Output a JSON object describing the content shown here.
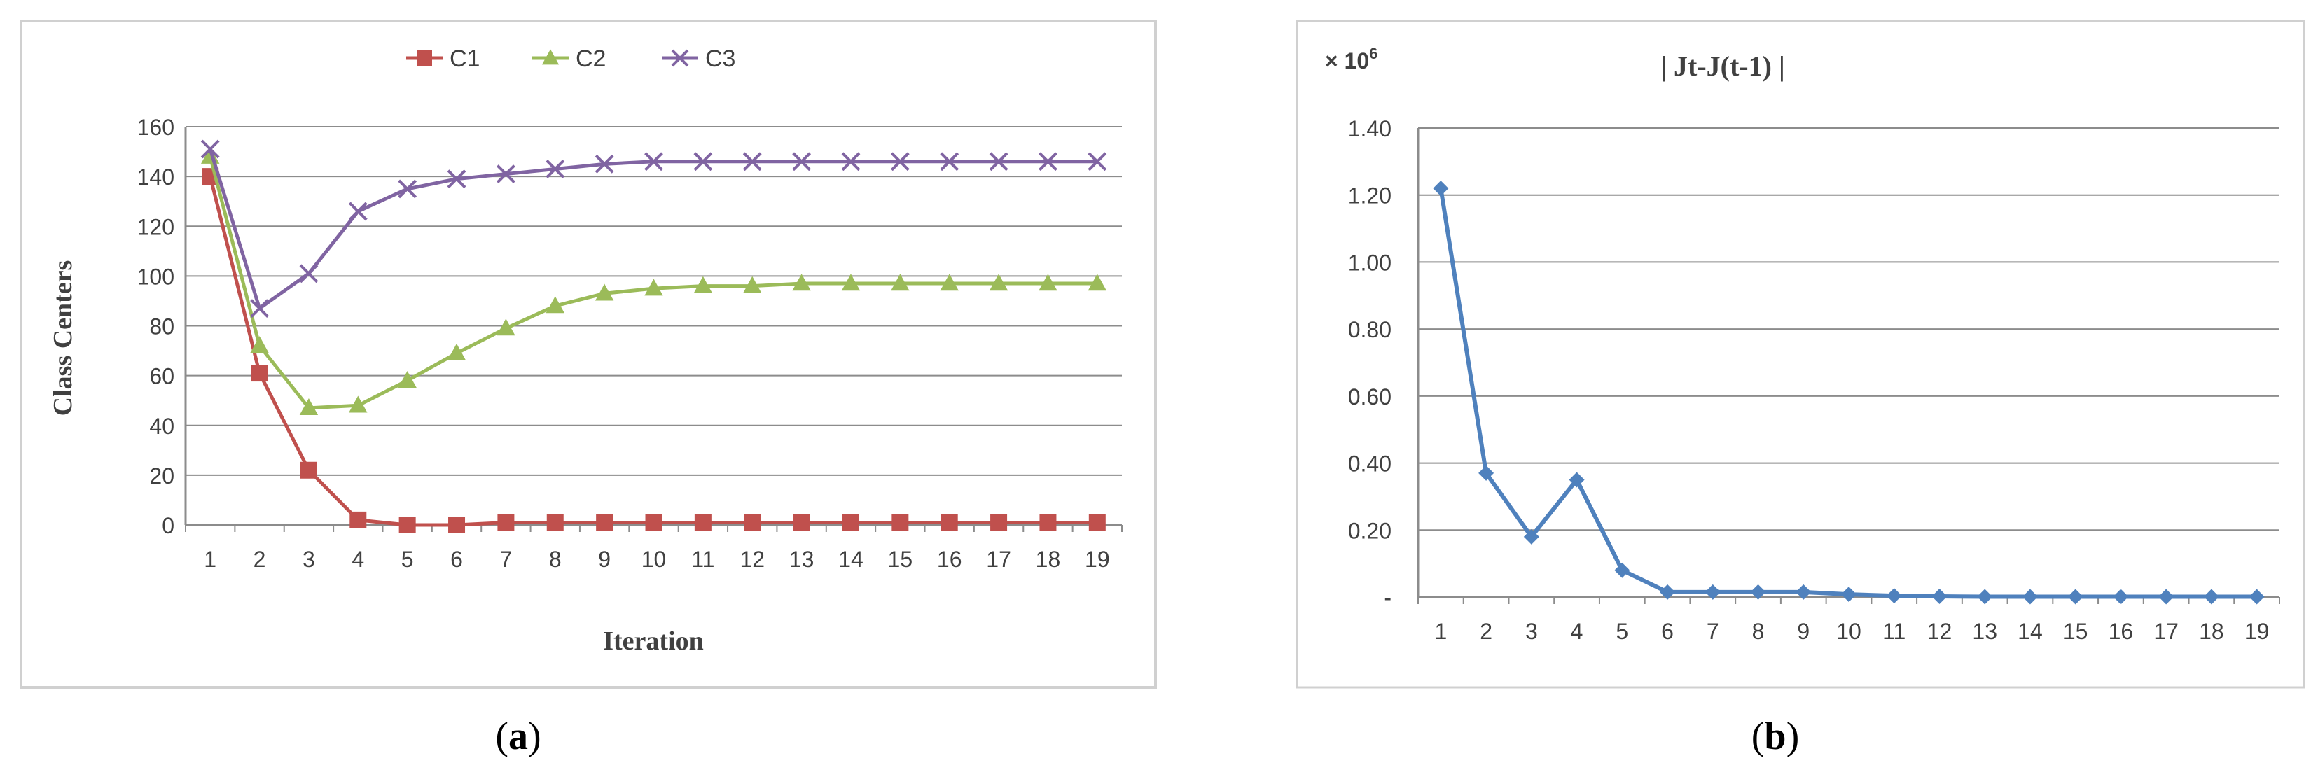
{
  "panels": [
    {
      "caption": "(",
      "caption_letter": "a",
      "caption_close": ")"
    },
    {
      "caption": "(",
      "caption_letter": "b",
      "caption_close": ")"
    }
  ],
  "chart_data": [
    {
      "type": "line",
      "x": [
        1,
        2,
        3,
        4,
        5,
        6,
        7,
        8,
        9,
        10,
        11,
        12,
        13,
        14,
        15,
        16,
        17,
        18,
        19
      ],
      "xlabel": "Iteration",
      "ylabel": "Class Centers",
      "ylim": [
        0,
        160
      ],
      "yticks": [
        "0",
        "20",
        "40",
        "60",
        "80",
        "100",
        "120",
        "140",
        "160"
      ],
      "grid": true,
      "legend": "top",
      "series": [
        {
          "name": "C1",
          "color": "#c0504d",
          "marker": "square",
          "values": [
            140,
            61,
            22,
            2,
            0,
            0,
            1,
            1,
            1,
            1,
            1,
            1,
            1,
            1,
            1,
            1,
            1,
            1,
            1
          ]
        },
        {
          "name": "C2",
          "color": "#9bbb59",
          "marker": "triangle",
          "values": [
            148,
            72,
            47,
            48,
            58,
            69,
            79,
            88,
            93,
            95,
            96,
            96,
            97,
            97,
            97,
            97,
            97,
            97,
            97
          ]
        },
        {
          "name": "C3",
          "color": "#8064a2",
          "marker": "x",
          "values": [
            151,
            87,
            101,
            126,
            135,
            139,
            141,
            143,
            145,
            146,
            146,
            146,
            146,
            146,
            146,
            146,
            146,
            146,
            146
          ]
        }
      ]
    },
    {
      "type": "line",
      "title": "| Jt-J(t-1) |",
      "multiplier_text": "× 10",
      "multiplier_exp": "6",
      "x": [
        1,
        2,
        3,
        4,
        5,
        6,
        7,
        8,
        9,
        10,
        11,
        12,
        13,
        14,
        15,
        16,
        17,
        18,
        19
      ],
      "ylim": [
        0,
        1.4
      ],
      "yticks": [
        "-",
        "0.20",
        "0.40",
        "0.60",
        "0.80",
        "1.00",
        "1.20",
        "1.40"
      ],
      "grid": true,
      "series": [
        {
          "color": "#4f81bd",
          "marker": "diamond",
          "values": [
            1.22,
            0.37,
            0.18,
            0.35,
            0.08,
            0.015,
            0.015,
            0.015,
            0.015,
            0.008,
            0.004,
            0.002,
            0.001,
            0.001,
            0.001,
            0.001,
            0.001,
            0.001,
            0.001
          ]
        }
      ]
    }
  ]
}
